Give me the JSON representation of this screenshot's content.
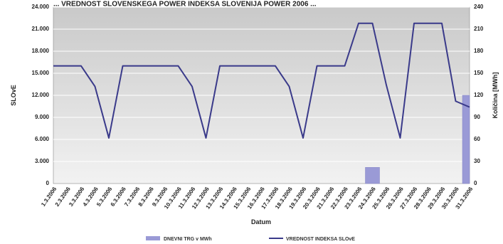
{
  "chart_data": {
    "type": "bar",
    "title": "... VREDNOST SLOVENSKEGA POWER INDEKSA SLOVENIJA POWER 2006 ...",
    "xlabel": "Datum",
    "ylabel_left": "SLOvE",
    "ylabel_right": "Količina [MWh]",
    "categories": [
      "1.3.2006",
      "2.3.2006",
      "3.3.2006",
      "4.3.2006",
      "5.3.2006",
      "6.3.2006",
      "7.3.2006",
      "8.3.2006",
      "9.3.2006",
      "10.3.2006",
      "11.3.2006",
      "12.3.2006",
      "13.3.2006",
      "14.3.2006",
      "15.3.2006",
      "16.3.2006",
      "17.3.2006",
      "18.3.2006",
      "19.3.2006",
      "20.3.2006",
      "21.3.2006",
      "22.3.2006",
      "23.3.2006",
      "24.3.2006",
      "25.3.2006",
      "26.3.2006",
      "27.3.2006",
      "28.3.2006",
      "29.3.2006",
      "30.3.2006",
      "31.3.2006"
    ],
    "ylim_left": [
      0,
      24000
    ],
    "yticks_left": [
      "0",
      "3.000",
      "6.000",
      "9.000",
      "12.000",
      "15.000",
      "18.000",
      "21.000",
      "24.000"
    ],
    "ylim_right": [
      0,
      240
    ],
    "yticks_right": [
      "0",
      "30",
      "60",
      "90",
      "120",
      "150",
      "180",
      "210",
      "240"
    ],
    "series": [
      {
        "name": "DNEVNI TRG v MWh",
        "type": "bar",
        "axis": "right",
        "color": "#9a9ad6",
        "values": [
          0,
          0,
          0,
          0,
          0,
          0,
          0,
          0,
          0,
          0,
          0,
          0,
          0,
          0,
          0,
          0,
          0,
          0,
          0,
          0,
          0,
          0,
          0,
          22,
          0,
          0,
          0,
          0,
          0,
          0,
          120
        ]
      },
      {
        "name": "VREDNOST INDEKSA SLOvE",
        "type": "line",
        "axis": "left",
        "color": "#3a3a8a",
        "values": [
          16000,
          16000,
          16000,
          13200,
          6200,
          16000,
          16000,
          16000,
          16000,
          16000,
          13200,
          6200,
          16000,
          16000,
          16000,
          16000,
          16000,
          13200,
          6200,
          16000,
          16000,
          16000,
          21800,
          21800,
          13400,
          6200,
          21800,
          21800,
          21800,
          11200,
          10400
        ]
      }
    ],
    "grid": true,
    "legend_placement": "bottom"
  }
}
